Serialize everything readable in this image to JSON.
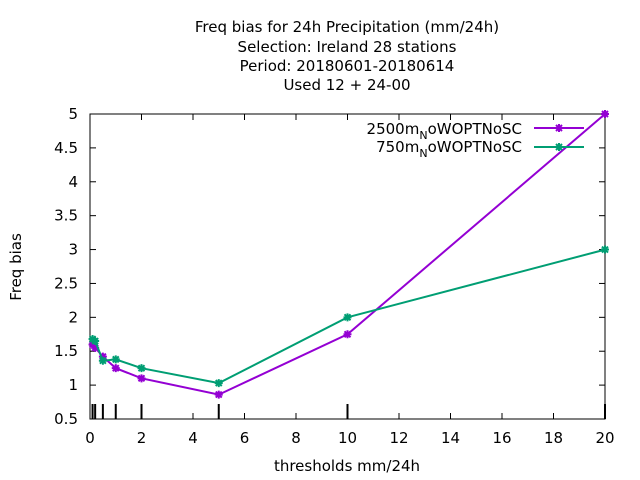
{
  "chart_data": {
    "type": "line",
    "title_lines": [
      "Freq bias  for 24h Precipitation (mm/24h)",
      "Selection: Ireland      28 stations",
      "Period: 20180601-20180614",
      "Used  12 + 24-00"
    ],
    "xlabel": "thresholds mm/24h",
    "ylabel": "Freq bias",
    "xlim": [
      0,
      20
    ],
    "ylim": [
      0.5,
      5
    ],
    "xticks": [
      0,
      2,
      4,
      6,
      8,
      10,
      12,
      14,
      16,
      18,
      20
    ],
    "yticks": [
      0.5,
      1,
      1.5,
      2,
      2.5,
      3,
      3.5,
      4,
      4.5,
      5
    ],
    "grid": false,
    "legend_position": "top-right",
    "threshold_marks": [
      0.1,
      0.2,
      0.5,
      1,
      2,
      5,
      10,
      20
    ],
    "series": [
      {
        "name_main": "2500m",
        "name_sub": "N",
        "name_tail": "oWOPTNoSC",
        "color": "#9400d3",
        "x": [
          0.1,
          0.2,
          0.5,
          1,
          2,
          5,
          10,
          20
        ],
        "y": [
          1.6,
          1.55,
          1.42,
          1.25,
          1.1,
          0.86,
          1.75,
          5.0
        ]
      },
      {
        "name_main": "750m",
        "name_sub": "N",
        "name_tail": "oWOPTNoSC",
        "color": "#009e73",
        "x": [
          0.1,
          0.2,
          0.5,
          1,
          2,
          5,
          10,
          20
        ],
        "y": [
          1.68,
          1.65,
          1.36,
          1.38,
          1.25,
          1.03,
          2.0,
          3.0
        ]
      }
    ]
  }
}
